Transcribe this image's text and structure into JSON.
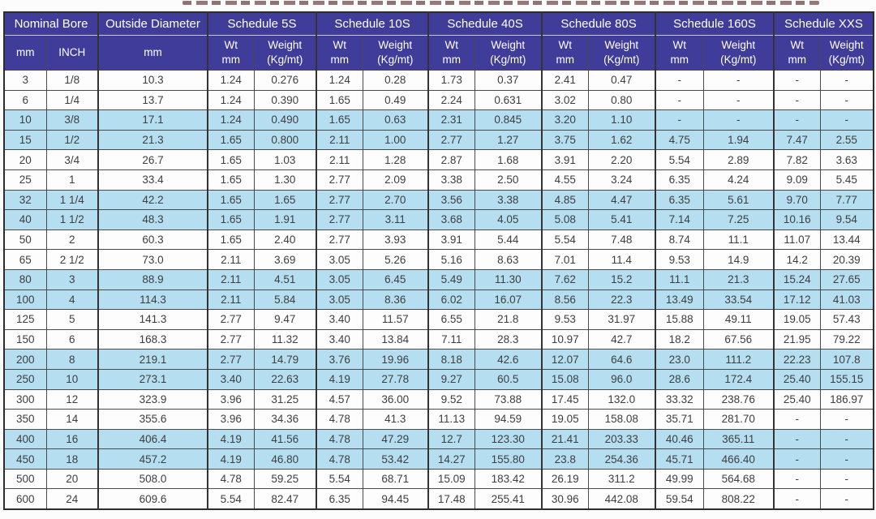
{
  "table": {
    "colors": {
      "header_bg": "#403d9a",
      "highlight_row_bg": "#b5dff1",
      "border": "#4a4a4a",
      "text": "#3e3e3e"
    },
    "header": {
      "groups": [
        {
          "label": "Nominal Bore",
          "span": 2
        },
        {
          "label": "Outside Diameter",
          "span": 1
        },
        {
          "label": "Schedule 5S",
          "span": 2
        },
        {
          "label": "Schedule 10S",
          "span": 2
        },
        {
          "label": "Schedule 40S",
          "span": 2
        },
        {
          "label": "Schedule 80S",
          "span": 2
        },
        {
          "label": "Schedule 160S",
          "span": 2
        },
        {
          "label": "Schedule XXS",
          "span": 2
        }
      ],
      "subheaders": [
        [
          "mm"
        ],
        [
          "INCH"
        ],
        [
          "mm"
        ],
        [
          "Wt",
          "mm"
        ],
        [
          "Weight",
          "(Kg/mt)"
        ],
        [
          "Wt",
          "mm"
        ],
        [
          "Weight",
          "(Kg/mt)"
        ],
        [
          "Wt",
          "mm"
        ],
        [
          "Weight",
          "(Kg/mt)"
        ],
        [
          "Wt",
          "mm"
        ],
        [
          "Weight",
          "(Kg/mt)"
        ],
        [
          "Wt",
          "mm"
        ],
        [
          "Weight",
          "(Kg/mt)"
        ],
        [
          "Wt",
          "mm"
        ],
        [
          "Weight",
          "(Kg/mt)"
        ]
      ]
    },
    "rows": [
      {
        "highlight": false,
        "cells": [
          "3",
          "1/8",
          "10.3",
          "1.24",
          "0.276",
          "1.24",
          "0.28",
          "1.73",
          "0.37",
          "2.41",
          "0.47",
          "-",
          "-",
          "-",
          "-"
        ]
      },
      {
        "highlight": false,
        "cells": [
          "6",
          "1/4",
          "13.7",
          "1.24",
          "0.390",
          "1.65",
          "0.49",
          "2.24",
          "0.631",
          "3.02",
          "0.80",
          "-",
          "-",
          "-",
          "-"
        ]
      },
      {
        "highlight": true,
        "cells": [
          "10",
          "3/8",
          "17.1",
          "1.24",
          "0.490",
          "1.65",
          "0.63",
          "2.31",
          "0.845",
          "3.20",
          "1.10",
          "-",
          "-",
          "-",
          "-"
        ]
      },
      {
        "highlight": true,
        "cells": [
          "15",
          "1/2",
          "21.3",
          "1.65",
          "0.800",
          "2.11",
          "1.00",
          "2.77",
          "1.27",
          "3.75",
          "1.62",
          "4.75",
          "1.94",
          "7.47",
          "2.55"
        ]
      },
      {
        "highlight": false,
        "cells": [
          "20",
          "3/4",
          "26.7",
          "1.65",
          "1.03",
          "2.11",
          "1.28",
          "2.87",
          "1.68",
          "3.91",
          "2.20",
          "5.54",
          "2.89",
          "7.82",
          "3.63"
        ]
      },
      {
        "highlight": false,
        "cells": [
          "25",
          "1",
          "33.4",
          "1.65",
          "1.30",
          "2.77",
          "2.09",
          "3.38",
          "2.50",
          "4.55",
          "3.24",
          "6.35",
          "4.24",
          "9.09",
          "5.45"
        ]
      },
      {
        "highlight": true,
        "cells": [
          "32",
          "1 1/4",
          "42.2",
          "1.65",
          "1.65",
          "2.77",
          "2.70",
          "3.56",
          "3.38",
          "4.85",
          "4.47",
          "6.35",
          "5.61",
          "9.70",
          "7.77"
        ]
      },
      {
        "highlight": true,
        "cells": [
          "40",
          "1 1/2",
          "48.3",
          "1.65",
          "1.91",
          "2.77",
          "3.11",
          "3.68",
          "4.05",
          "5.08",
          "5.41",
          "7.14",
          "7.25",
          "10.16",
          "9.54"
        ]
      },
      {
        "highlight": false,
        "cells": [
          "50",
          "2",
          "60.3",
          "1.65",
          "2.40",
          "2.77",
          "3.93",
          "3.91",
          "5.44",
          "5.54",
          "7.48",
          "8.74",
          "11.1",
          "11.07",
          "13.44"
        ]
      },
      {
        "highlight": false,
        "cells": [
          "65",
          "2 1/2",
          "73.0",
          "2.11",
          "3.69",
          "3.05",
          "5.26",
          "5.16",
          "8.63",
          "7.01",
          "11.4",
          "9.53",
          "14.9",
          "14.2",
          "20.39"
        ]
      },
      {
        "highlight": true,
        "cells": [
          "80",
          "3",
          "88.9",
          "2.11",
          "4.51",
          "3.05",
          "6.45",
          "5.49",
          "11.30",
          "7.62",
          "15.2",
          "11.1",
          "21.3",
          "15.24",
          "27.65"
        ]
      },
      {
        "highlight": true,
        "cells": [
          "100",
          "4",
          "114.3",
          "2.11",
          "5.84",
          "3.05",
          "8.36",
          "6.02",
          "16.07",
          "8.56",
          "22.3",
          "13.49",
          "33.54",
          "17.12",
          "41.03"
        ]
      },
      {
        "highlight": false,
        "cells": [
          "125",
          "5",
          "141.3",
          "2.77",
          "9.47",
          "3.40",
          "11.57",
          "6.55",
          "21.8",
          "9.53",
          "31.97",
          "15.88",
          "49.11",
          "19.05",
          "57.43"
        ]
      },
      {
        "highlight": false,
        "cells": [
          "150",
          "6",
          "168.3",
          "2.77",
          "11.32",
          "3.40",
          "13.84",
          "7.11",
          "28.3",
          "10.97",
          "42.7",
          "18.2",
          "67.56",
          "21.95",
          "79.22"
        ]
      },
      {
        "highlight": true,
        "cells": [
          "200",
          "8",
          "219.1",
          "2.77",
          "14.79",
          "3.76",
          "19.96",
          "8.18",
          "42.6",
          "12.07",
          "64.6",
          "23.0",
          "111.2",
          "22.23",
          "107.8"
        ]
      },
      {
        "highlight": true,
        "cells": [
          "250",
          "10",
          "273.1",
          "3.40",
          "22.63",
          "4.19",
          "27.78",
          "9.27",
          "60.5",
          "15.08",
          "96.0",
          "28.6",
          "172.4",
          "25.40",
          "155.15"
        ]
      },
      {
        "highlight": false,
        "cells": [
          "300",
          "12",
          "323.9",
          "3.96",
          "31.25",
          "4.57",
          "36.00",
          "9.52",
          "73.88",
          "17.45",
          "132.0",
          "33.32",
          "238.76",
          "25.40",
          "186.97"
        ]
      },
      {
        "highlight": false,
        "cells": [
          "350",
          "14",
          "355.6",
          "3.96",
          "34.36",
          "4.78",
          "41.3",
          "11.13",
          "94.59",
          "19.05",
          "158.08",
          "35.71",
          "281.70",
          "-",
          "-"
        ]
      },
      {
        "highlight": true,
        "cells": [
          "400",
          "16",
          "406.4",
          "4.19",
          "41.56",
          "4.78",
          "47.29",
          "12.7",
          "123.30",
          "21.41",
          "203.33",
          "40.46",
          "365.11",
          "-",
          "-"
        ]
      },
      {
        "highlight": true,
        "cells": [
          "450",
          "18",
          "457.2",
          "4.19",
          "46.80",
          "4.78",
          "53.42",
          "14.27",
          "155.80",
          "23.8",
          "254.36",
          "45.71",
          "466.40",
          "-",
          "-"
        ]
      },
      {
        "highlight": false,
        "cells": [
          "500",
          "20",
          "508.0",
          "4.78",
          "59.25",
          "5.54",
          "68.71",
          "15.09",
          "183.42",
          "26.19",
          "311.2",
          "49.99",
          "564.68",
          "-",
          "-"
        ]
      },
      {
        "highlight": false,
        "cells": [
          "600",
          "24",
          "609.6",
          "5.54",
          "82.47",
          "6.35",
          "94.45",
          "17.48",
          "255.41",
          "30.96",
          "442.08",
          "59.54",
          "808.22",
          "-",
          "-"
        ]
      }
    ]
  }
}
